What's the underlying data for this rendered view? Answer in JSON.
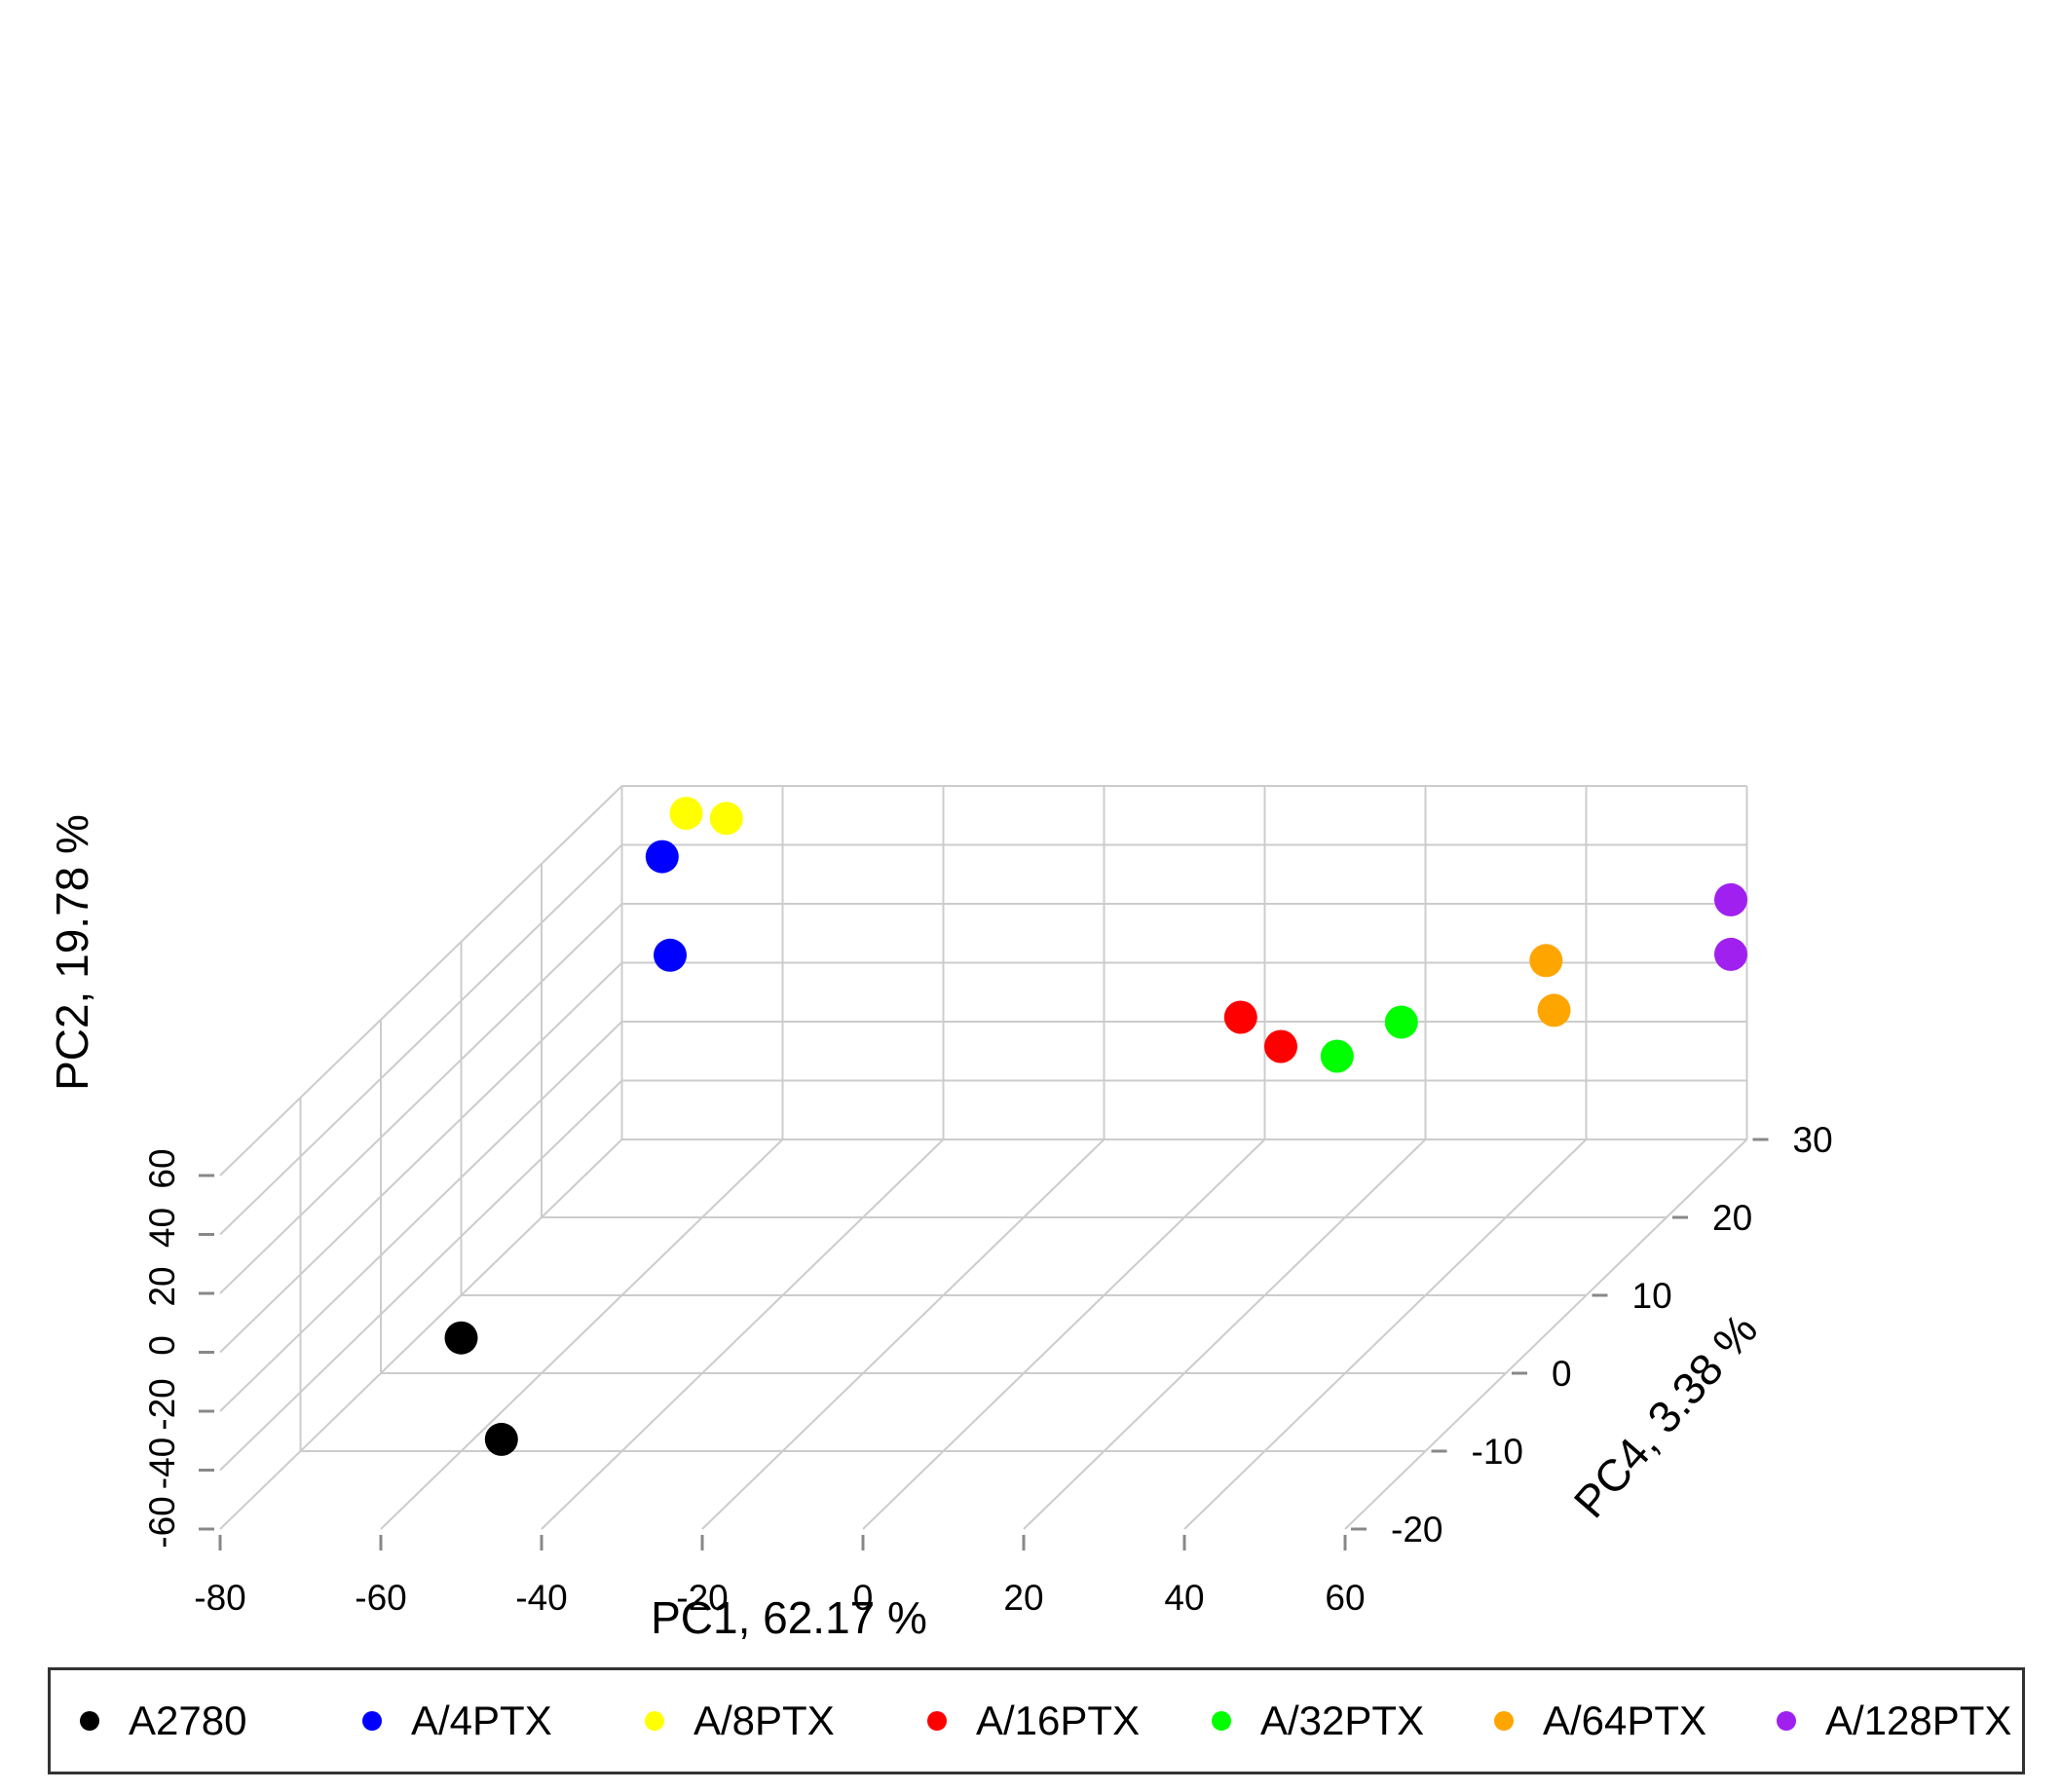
{
  "chart_data": {
    "type": "scatter",
    "projection": "3d",
    "title": "",
    "xlabel": "PC1,  62.17 %",
    "ylabel": "PC2,  19.78 %",
    "zlabel": "PC4,  3.38 %",
    "xlim": [
      -80,
      60
    ],
    "ylim": [
      -60,
      60
    ],
    "zlim": [
      -20,
      30
    ],
    "x_ticks": [
      "-80",
      "-60",
      "-40",
      "-20",
      "0",
      "20",
      "40",
      "60"
    ],
    "y_ticks": [
      "-60",
      "-40",
      "-20",
      "0",
      "20",
      "40",
      "60"
    ],
    "z_ticks": [
      "-20",
      "-10",
      "0",
      "10",
      "20",
      "30"
    ],
    "grid": true,
    "legend_position": "bottom",
    "series": [
      {
        "name": "A2780",
        "color": "#000000",
        "points": [
          {
            "x": -70,
            "y": -48,
            "z": 0
          },
          {
            "x": -55,
            "y": -56,
            "z": -10
          }
        ]
      },
      {
        "name": "A/4PTX",
        "color": "#0000ff",
        "points": [
          {
            "x": -75,
            "y": 36,
            "z": 30
          },
          {
            "x": -64,
            "y": 29,
            "z": 20
          }
        ]
      },
      {
        "name": "A/8PTX",
        "color": "#ffff00",
        "points": [
          {
            "x": -67,
            "y": 49,
            "z": 30
          },
          {
            "x": -70,
            "y": 56,
            "z": 28
          }
        ]
      },
      {
        "name": "A/16PTX",
        "color": "#ff0000",
        "points": [
          {
            "x": 4,
            "y": 0,
            "z": 23
          },
          {
            "x": 12,
            "y": -2,
            "z": 20
          }
        ]
      },
      {
        "name": "A/32PTX",
        "color": "#00ff00",
        "points": [
          {
            "x": 21,
            "y": 0,
            "z": 18
          },
          {
            "x": 25,
            "y": 1,
            "z": 22
          }
        ]
      },
      {
        "name": "A/64PTX",
        "color": "#ffa500",
        "points": [
          {
            "x": 37,
            "y": 6,
            "z": 28
          },
          {
            "x": 44,
            "y": 5,
            "z": 22
          }
        ]
      },
      {
        "name": "A/128PTX",
        "color": "#a020f0",
        "points": [
          {
            "x": 59,
            "y": 24,
            "z": 29
          },
          {
            "x": 66,
            "y": 24,
            "z": 22
          }
        ]
      }
    ]
  }
}
